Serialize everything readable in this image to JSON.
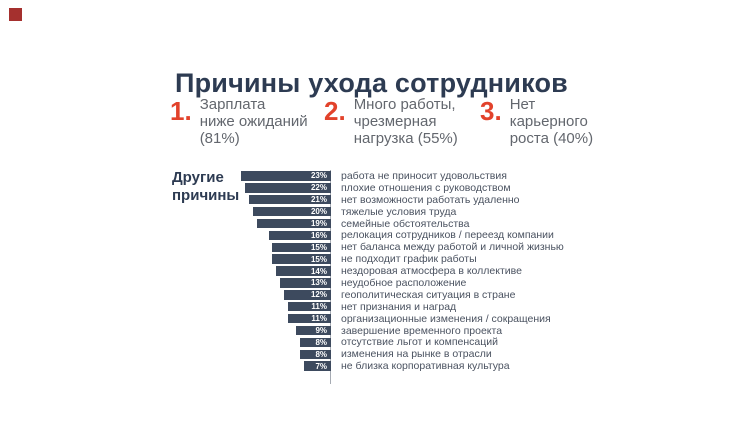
{
  "page": {
    "title": "Причины ухода сотрудников"
  },
  "top_reasons": [
    {
      "rank": "1.",
      "text": "Зарплата\nниже ожиданий\n(81%)",
      "label": "Зарплата ниже ожиданий",
      "value": 81
    },
    {
      "rank": "2.",
      "text": "Много работы,\nчрезмерная\nнагрузка (55%)",
      "label": "Много работы, чрезмерная нагрузка",
      "value": 55
    },
    {
      "rank": "3.",
      "text": "Нет\nкарьерного\nроста (40%)",
      "label": "Нет карьерного роста",
      "value": 40
    }
  ],
  "chart_data": {
    "type": "bar",
    "title": "Причины ухода сотрудников",
    "orientation": "horizontal",
    "bars_right_aligned": true,
    "group_label": "Другие\nпричины",
    "unit": "%",
    "xlim": [
      0,
      23
    ],
    "grid": false,
    "legend": false,
    "categories": [
      "работа не приносит удовольствия",
      "плохие отношения с руководством",
      "нет возможности работать удаленно",
      "тяжелые условия труда",
      "семейные обстоятельства",
      "релокация сотрудников / переезд компании",
      "нет баланса между работой и личной жизнью",
      "не подходит график работы",
      "нездоровая атмосфера в коллективе",
      "неудобное расположение",
      "геополитическая ситуация в стране",
      "нет признания и наград",
      "организационные изменения / сокращения",
      "завершение временного проекта",
      "отсутствие льгот и компенсаций",
      "изменения на рынке в отрасли",
      "не близка корпоративная культура"
    ],
    "values": [
      23,
      22,
      21,
      20,
      19,
      16,
      15,
      15,
      14,
      13,
      12,
      11,
      11,
      9,
      8,
      8,
      7
    ]
  },
  "colors": {
    "background": "#ffffff",
    "title": "#2d3b52",
    "accent": "#e2422b",
    "bar": "#3d4a5e",
    "category_text": "#4a5260",
    "reason_text": "#63676e",
    "axis_line": "#a6abb3",
    "logo": "#a5302e"
  }
}
